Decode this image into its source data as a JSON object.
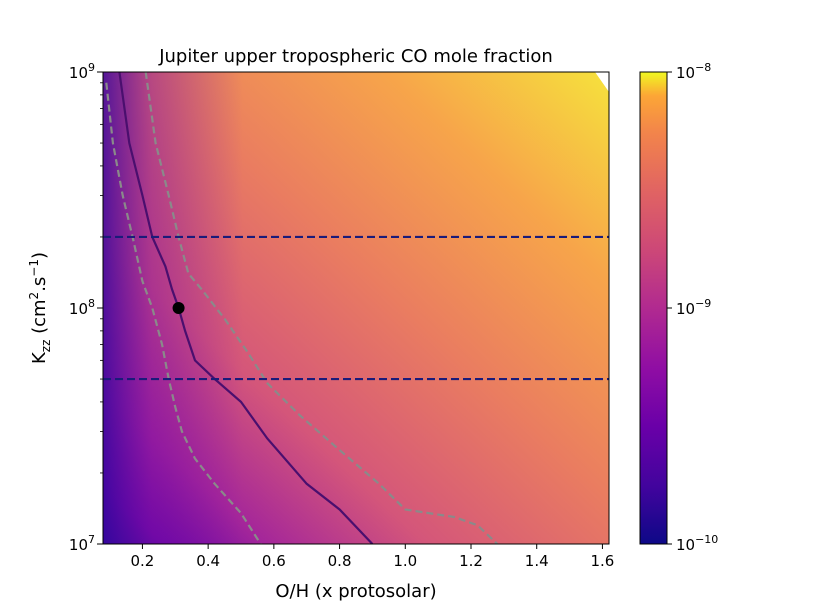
{
  "chart_data": {
    "type": "heatmap",
    "title": "Jupiter upper tropospheric CO mole fraction",
    "xlabel": "O/H (x protosolar)",
    "ylabel": {
      "main": "K",
      "sub": "zz",
      "unit_pre": " (cm",
      "unit_sup": "2",
      "unit_mid": ".s",
      "unit_sup2": "−1",
      "unit_post": ")"
    },
    "x_range": [
      0.08,
      1.62
    ],
    "y_range": [
      10000000.0,
      1000000000.0
    ],
    "y_scale": "log",
    "x_ticks": [
      "0.2",
      "0.4",
      "0.6",
      "0.8",
      "1.0",
      "1.2",
      "1.4",
      "1.6"
    ],
    "x_tick_values": [
      0.2,
      0.4,
      0.6,
      0.8,
      1.0,
      1.2,
      1.4,
      1.6
    ],
    "y_ticks": [
      {
        "value": 10000000.0,
        "base": "10",
        "exp": "7"
      },
      {
        "value": 100000000.0,
        "base": "10",
        "exp": "8"
      },
      {
        "value": 1000000000.0,
        "base": "10",
        "exp": "9"
      }
    ],
    "colorbar": {
      "colormap": "plasma",
      "range": [
        1e-10,
        1e-08
      ],
      "scale": "log",
      "ticks": [
        {
          "value": 1e-10,
          "base": "10",
          "exp": "−10"
        },
        {
          "value": 1e-09,
          "base": "10",
          "exp": "−9"
        },
        {
          "value": 1e-08,
          "base": "10",
          "exp": "−8"
        }
      ]
    },
    "contours": [
      {
        "style": "solid",
        "color": "#4a0f6e",
        "points": [
          [
            0.13,
            1000000000.0
          ],
          [
            0.16,
            500000000.0
          ],
          [
            0.2,
            300000000.0
          ],
          [
            0.23,
            200000000.0
          ],
          [
            0.27,
            150000000.0
          ],
          [
            0.29,
            120000000.0
          ],
          [
            0.31,
            100000000.0
          ],
          [
            0.33,
            80000000.0
          ],
          [
            0.36,
            60000000.0
          ],
          [
            0.42,
            50000000.0
          ],
          [
            0.5,
            40000000.0
          ],
          [
            0.58,
            28000000.0
          ],
          [
            0.7,
            18000000.0
          ],
          [
            0.8,
            14000000.0
          ],
          [
            0.9,
            10000000.0
          ]
        ]
      },
      {
        "style": "dashed",
        "color": "#8a8a8a",
        "points": [
          [
            0.09,
            900000000.0
          ],
          [
            0.11,
            500000000.0
          ],
          [
            0.14,
            300000000.0
          ],
          [
            0.17,
            200000000.0
          ],
          [
            0.2,
            130000000.0
          ],
          [
            0.23,
            100000000.0
          ],
          [
            0.26,
            70000000.0
          ],
          [
            0.28,
            50000000.0
          ],
          [
            0.3,
            38000000.0
          ],
          [
            0.32,
            30000000.0
          ],
          [
            0.36,
            23000000.0
          ],
          [
            0.42,
            18000000.0
          ],
          [
            0.5,
            13500000.0
          ],
          [
            0.56,
            10000000.0
          ]
        ]
      },
      {
        "style": "dashed",
        "color": "#8a8a8a",
        "points": [
          [
            0.21,
            1000000000.0
          ],
          [
            0.24,
            500000000.0
          ],
          [
            0.28,
            300000000.0
          ],
          [
            0.31,
            200000000.0
          ],
          [
            0.34,
            140000000.0
          ],
          [
            0.38,
            120000000.0
          ],
          [
            0.45,
            90000000.0
          ],
          [
            0.52,
            65000000.0
          ],
          [
            0.58,
            48000000.0
          ],
          [
            0.68,
            35000000.0
          ],
          [
            0.8,
            25000000.0
          ],
          [
            0.92,
            18000000.0
          ],
          [
            1.0,
            14000000.0
          ],
          [
            1.15,
            13000000.0
          ],
          [
            1.22,
            12000000.0
          ],
          [
            1.28,
            10000000.0
          ]
        ]
      }
    ],
    "hlines": [
      {
        "y": 200000000.0,
        "style": "dashed",
        "color": "#1a1b7a"
      },
      {
        "y": 50000000.0,
        "style": "dashed",
        "color": "#1a1b7a"
      }
    ],
    "point": {
      "x": 0.31,
      "y": 100000000.0,
      "color": "#000000"
    }
  }
}
